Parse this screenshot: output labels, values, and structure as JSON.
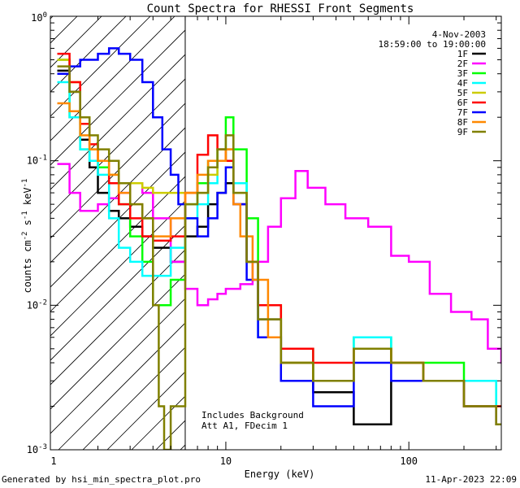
{
  "chart_data": {
    "type": "line",
    "title": "Count Spectra for RHESSI Front Segments",
    "xlabel": "Energy (keV)",
    "ylabel": "counts cm^-2 s^-1 keV^-1",
    "x_scale": "log",
    "y_scale": "log",
    "xlim": [
      1.1,
      320
    ],
    "ylim": [
      0.001,
      1.0
    ],
    "x_ticks": [
      {
        "value": 1,
        "label": "1"
      },
      {
        "value": 10,
        "label": "10"
      },
      {
        "value": 100,
        "label": "100"
      }
    ],
    "y_ticks": [
      {
        "value": 1.0,
        "base": "10",
        "exp": "0"
      },
      {
        "value": 0.1,
        "base": "10",
        "exp": "-1"
      },
      {
        "value": 0.01,
        "base": "10",
        "exp": "-2"
      },
      {
        "value": 0.001,
        "base": "10",
        "exp": "-3"
      }
    ],
    "attenuator_boundary_kev": 6.0,
    "legend": {
      "date": "4-Nov-2003",
      "time_range": "18:59:00 to 19:00:00",
      "placement": "top-right"
    },
    "annotations": [
      "Includes Background",
      "Att A1, FDecim 1"
    ],
    "series": [
      {
        "name": "1F",
        "color": "#000000",
        "x": [
          1.2,
          1.4,
          1.6,
          1.8,
          2.0,
          2.3,
          2.6,
          3.0,
          3.5,
          4.0,
          5.0,
          6.0,
          7.0,
          8.0,
          9.0,
          10.0,
          11.0,
          13.0,
          15.0,
          20.0,
          30.0,
          50.0,
          80.0,
          120.0,
          200.0,
          300.0
        ],
        "y": [
          0.42,
          0.3,
          0.14,
          0.09,
          0.06,
          0.045,
          0.04,
          0.035,
          0.03,
          0.025,
          0.02,
          0.03,
          0.035,
          0.05,
          0.06,
          0.07,
          0.05,
          0.02,
          0.008,
          0.004,
          0.0025,
          0.0015,
          0.003,
          0.003,
          0.002,
          0.0015
        ]
      },
      {
        "name": "2F",
        "color": "#ff00ff",
        "x": [
          1.2,
          1.4,
          1.6,
          1.8,
          2.0,
          2.3,
          2.6,
          3.0,
          3.5,
          4.0,
          5.0,
          6.0,
          7.0,
          8.0,
          9.0,
          10.0,
          12.0,
          14.0,
          17.0,
          20.0,
          24.0,
          28.0,
          35.0,
          45.0,
          60.0,
          80.0,
          100.0,
          130.0,
          170.0,
          220.0,
          270.0,
          320.0
        ],
        "y": [
          0.095,
          0.06,
          0.045,
          0.045,
          0.05,
          0.055,
          0.06,
          0.07,
          0.06,
          0.04,
          0.02,
          0.013,
          0.01,
          0.011,
          0.012,
          0.013,
          0.014,
          0.02,
          0.035,
          0.055,
          0.085,
          0.065,
          0.05,
          0.04,
          0.035,
          0.022,
          0.02,
          0.012,
          0.009,
          0.008,
          0.005,
          0.004
        ]
      },
      {
        "name": "3F",
        "color": "#00ff00",
        "x": [
          1.2,
          1.4,
          1.6,
          1.8,
          2.0,
          2.3,
          2.6,
          3.0,
          3.5,
          4.0,
          5.0,
          6.0,
          7.0,
          8.0,
          9.0,
          10.0,
          11.0,
          13.0,
          15.0,
          20.0,
          30.0,
          50.0,
          80.0,
          120.0,
          200.0,
          300.0
        ],
        "y": [
          0.5,
          0.2,
          0.12,
          0.1,
          0.09,
          0.07,
          0.05,
          0.03,
          0.02,
          0.01,
          0.015,
          0.05,
          0.07,
          0.1,
          0.12,
          0.2,
          0.12,
          0.04,
          0.01,
          0.005,
          0.003,
          0.006,
          0.004,
          0.004,
          0.003,
          0.002
        ]
      },
      {
        "name": "4F",
        "color": "#00ffff",
        "x": [
          1.2,
          1.4,
          1.6,
          1.8,
          2.0,
          2.3,
          2.6,
          3.0,
          3.5,
          4.0,
          5.0,
          6.0,
          7.0,
          8.0,
          9.0,
          10.0,
          11.0,
          13.0,
          15.0,
          20.0,
          30.0,
          50.0,
          80.0,
          120.0,
          200.0,
          300.0
        ],
        "y": [
          0.35,
          0.2,
          0.12,
          0.1,
          0.08,
          0.04,
          0.025,
          0.02,
          0.016,
          0.016,
          0.025,
          0.04,
          0.05,
          0.07,
          0.1,
          0.12,
          0.07,
          0.02,
          0.006,
          0.004,
          0.003,
          0.006,
          0.004,
          0.003,
          0.003,
          0.002
        ]
      },
      {
        "name": "5F",
        "color": "#cccc00",
        "x": [
          1.2,
          1.4,
          1.6,
          1.8,
          2.0,
          2.3,
          2.6,
          3.0,
          3.5,
          4.0,
          5.0,
          6.0,
          7.0,
          8.0,
          9.0,
          10.0,
          11.0,
          13.0,
          15.0,
          20.0,
          30.0,
          50.0,
          80.0,
          120.0,
          200.0,
          300.0
        ],
        "y": [
          0.5,
          0.35,
          0.2,
          0.12,
          0.1,
          0.08,
          0.07,
          0.07,
          0.065,
          0.06,
          0.06,
          0.06,
          0.06,
          0.08,
          0.1,
          0.12,
          0.06,
          0.02,
          0.01,
          0.004,
          0.003,
          0.005,
          0.004,
          0.003,
          0.002,
          0.002
        ]
      },
      {
        "name": "6F",
        "color": "#ff0000",
        "x": [
          1.2,
          1.4,
          1.6,
          1.8,
          2.0,
          2.3,
          2.6,
          3.0,
          3.5,
          4.0,
          5.0,
          6.0,
          7.0,
          8.0,
          9.0,
          10.0,
          11.0,
          13.0,
          15.0,
          20.0,
          30.0,
          50.0,
          80.0,
          120.0,
          200.0,
          300.0
        ],
        "y": [
          0.55,
          0.35,
          0.18,
          0.13,
          0.1,
          0.07,
          0.05,
          0.04,
          0.03,
          0.028,
          0.03,
          0.06,
          0.11,
          0.15,
          0.12,
          0.1,
          0.05,
          0.02,
          0.01,
          0.005,
          0.004,
          0.005,
          0.004,
          0.003,
          0.002,
          0.002
        ]
      },
      {
        "name": "7F",
        "color": "#0000ff",
        "x": [
          1.2,
          1.4,
          1.6,
          1.8,
          2.0,
          2.3,
          2.6,
          3.0,
          3.5,
          4.0,
          4.5,
          5.0,
          5.5,
          6.0,
          7.0,
          8.0,
          9.0,
          10.0,
          11.0,
          13.0,
          15.0,
          20.0,
          30.0,
          50.0,
          80.0,
          120.0,
          200.0,
          300.0
        ],
        "y": [
          0.4,
          0.45,
          0.5,
          0.5,
          0.55,
          0.6,
          0.55,
          0.5,
          0.35,
          0.2,
          0.12,
          0.08,
          0.05,
          0.04,
          0.03,
          0.04,
          0.06,
          0.09,
          0.05,
          0.015,
          0.006,
          0.003,
          0.002,
          0.004,
          0.003,
          0.003,
          0.002,
          0.0015
        ]
      },
      {
        "name": "8F",
        "color": "#ff8800",
        "x": [
          1.2,
          1.4,
          1.6,
          1.8,
          2.0,
          2.3,
          2.6,
          3.0,
          3.5,
          4.0,
          5.0,
          6.0,
          7.0,
          8.0,
          9.0,
          10.0,
          11.0,
          12.0,
          14.0,
          17.0,
          20.0,
          30.0,
          50.0,
          80.0,
          120.0,
          200.0,
          300.0
        ],
        "y": [
          0.25,
          0.22,
          0.15,
          0.12,
          0.1,
          0.08,
          0.06,
          0.05,
          0.04,
          0.03,
          0.04,
          0.06,
          0.08,
          0.1,
          0.1,
          0.12,
          0.05,
          0.03,
          0.015,
          0.006,
          0.004,
          0.003,
          0.005,
          0.004,
          0.003,
          0.002,
          0.0015
        ]
      },
      {
        "name": "9F",
        "color": "#808000",
        "x": [
          1.2,
          1.4,
          1.6,
          1.8,
          2.0,
          2.3,
          2.6,
          3.0,
          3.5,
          4.0,
          4.3,
          4.6,
          5.0,
          6.0,
          7.0,
          8.0,
          9.0,
          10.0,
          11.0,
          13.0,
          15.0,
          20.0,
          30.0,
          50.0,
          80.0,
          120.0,
          200.0,
          300.0
        ],
        "y": [
          0.45,
          0.3,
          0.2,
          0.15,
          0.12,
          0.1,
          0.07,
          0.05,
          0.04,
          0.01,
          0.002,
          0.001,
          0.002,
          0.05,
          0.06,
          0.09,
          0.12,
          0.15,
          0.06,
          0.02,
          0.008,
          0.004,
          0.003,
          0.005,
          0.004,
          0.003,
          0.002,
          0.0015
        ]
      }
    ]
  },
  "footer": {
    "generated_by": "Generated by hsi_min_spectra_plot.pro",
    "timestamp": "11-Apr-2023 22:09"
  }
}
